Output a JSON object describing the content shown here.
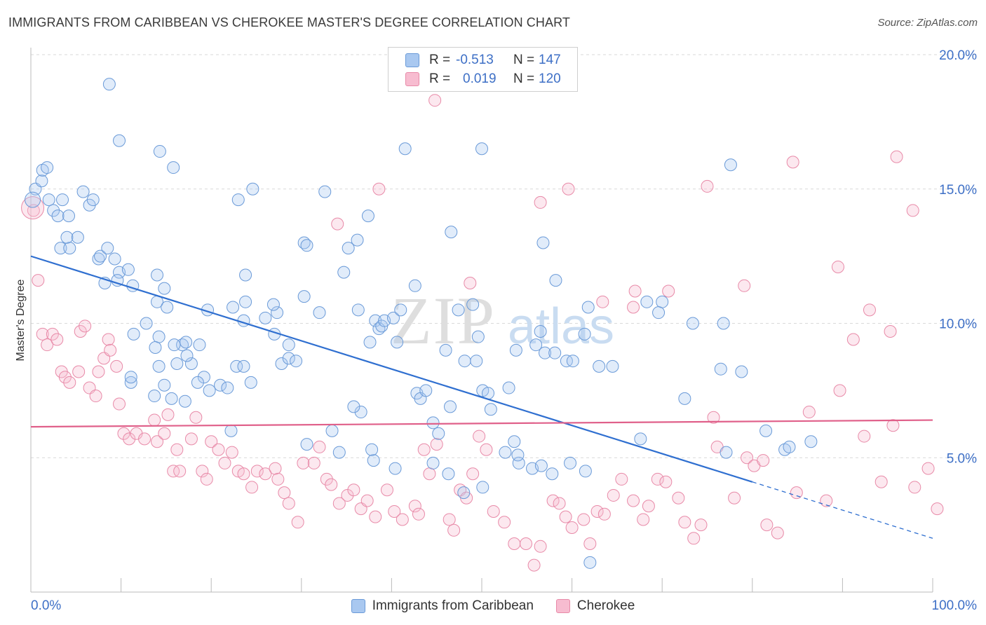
{
  "header": {
    "title": "IMMIGRANTS FROM CARIBBEAN VS CHEROKEE MASTER'S DEGREE CORRELATION CHART",
    "source": "Source: ZipAtlas.com"
  },
  "watermark": {
    "zip": "ZIP",
    "atlas": "atlas"
  },
  "legend": {
    "rows": [
      {
        "r_label": "R =",
        "r_value": "-0.513",
        "n_label": "N =",
        "n_value": "147",
        "color": "#a9c8f0",
        "border": "#6a9ad8"
      },
      {
        "r_label": "R =",
        "r_value": "0.019",
        "n_label": "N =",
        "n_value": "120",
        "color": "#f7bcd0",
        "border": "#e88aa8"
      }
    ]
  },
  "bottom_legend": [
    {
      "label": "Immigrants from Caribbean",
      "color": "#a9c8f0",
      "border": "#6a9ad8"
    },
    {
      "label": "Cherokee",
      "color": "#f7bcd0",
      "border": "#e88aa8"
    }
  ],
  "chart_data": {
    "type": "scatter",
    "title": "IMMIGRANTS FROM CARIBBEAN VS CHEROKEE MASTER'S DEGREE CORRELATION CHART",
    "xlabel": "",
    "ylabel": "Master's Degree",
    "xlim": [
      0,
      100
    ],
    "ylim": [
      0,
      20
    ],
    "x_tick_labels": [
      "0.0%",
      "100.0%"
    ],
    "y_ticks": [
      5,
      10,
      15,
      20
    ],
    "y_tick_labels": [
      "5.0%",
      "10.0%",
      "15.0%",
      "20.0%"
    ],
    "grid": true,
    "legend_position": "top-center",
    "colors": {
      "caribbean": "#6a9ad8",
      "caribbean_line": "#2f6fd0",
      "cherokee": "#e88aa8",
      "cherokee_line": "#e0608a",
      "axis_label": "#3d6fc6"
    },
    "series": [
      {
        "name": "Immigrants from Caribbean",
        "trend": {
          "x": [
            0,
            80
          ],
          "y": [
            12.5,
            4.1
          ],
          "dashed_extension_to": [
            100,
            2.0
          ]
        },
        "points": [
          [
            0.5,
            15.0
          ],
          [
            1.2,
            15.3
          ],
          [
            1.3,
            15.7
          ],
          [
            1.8,
            15.8
          ],
          [
            2.0,
            14.6
          ],
          [
            2.5,
            14.2
          ],
          [
            3.0,
            14.0
          ],
          [
            3.5,
            14.6
          ],
          [
            4.2,
            14.0
          ],
          [
            3.3,
            12.8
          ],
          [
            4.3,
            12.8
          ],
          [
            4.0,
            13.2
          ],
          [
            5.2,
            13.2
          ],
          [
            5.8,
            14.9
          ],
          [
            6.5,
            14.4
          ],
          [
            6.9,
            14.6
          ],
          [
            7.5,
            12.4
          ],
          [
            7.7,
            12.5
          ],
          [
            8.5,
            12.8
          ],
          [
            9.3,
            12.4
          ],
          [
            8.2,
            11.5
          ],
          [
            9.8,
            11.9
          ],
          [
            9.6,
            11.6
          ],
          [
            10.8,
            12.0
          ],
          [
            11.3,
            11.4
          ],
          [
            14.0,
            11.8
          ],
          [
            14.8,
            11.3
          ],
          [
            14.0,
            10.8
          ],
          [
            15.1,
            10.6
          ],
          [
            11.4,
            9.6
          ],
          [
            12.8,
            10.0
          ],
          [
            14.2,
            9.5
          ],
          [
            16.8,
            9.2
          ],
          [
            17.2,
            9.3
          ],
          [
            17.8,
            8.5
          ],
          [
            18.7,
            9.2
          ],
          [
            15.9,
            9.2
          ],
          [
            14.2,
            8.4
          ],
          [
            13.8,
            9.1
          ],
          [
            17.3,
            8.8
          ],
          [
            17.1,
            7.1
          ],
          [
            19.2,
            8.0
          ],
          [
            18.5,
            7.8
          ],
          [
            19.8,
            7.5
          ],
          [
            21.0,
            7.7
          ],
          [
            21.8,
            7.6
          ],
          [
            22.2,
            6.0
          ],
          [
            22.8,
            8.4
          ],
          [
            23.6,
            8.4
          ],
          [
            24.4,
            7.8
          ],
          [
            22.4,
            10.6
          ],
          [
            23.6,
            10.1
          ],
          [
            23.8,
            11.8
          ],
          [
            26.0,
            10.2
          ],
          [
            27.0,
            9.6
          ],
          [
            27.3,
            10.4
          ],
          [
            27.8,
            8.5
          ],
          [
            28.6,
            9.2
          ],
          [
            28.6,
            8.7
          ],
          [
            29.4,
            8.6
          ],
          [
            30.3,
            13.0
          ],
          [
            30.6,
            12.9
          ],
          [
            32.0,
            10.4
          ],
          [
            34.7,
            11.9
          ],
          [
            35.2,
            12.8
          ],
          [
            36.2,
            13.1
          ],
          [
            36.3,
            10.5
          ],
          [
            38.2,
            10.1
          ],
          [
            38.6,
            9.8
          ],
          [
            38.9,
            9.9
          ],
          [
            39.2,
            10.1
          ],
          [
            40.2,
            10.2
          ],
          [
            41.0,
            10.5
          ],
          [
            42.8,
            7.4
          ],
          [
            43.2,
            7.2
          ],
          [
            43.8,
            7.5
          ],
          [
            44.6,
            6.3
          ],
          [
            45.2,
            5.9
          ],
          [
            46.3,
            4.4
          ],
          [
            47.4,
            10.5
          ],
          [
            49.0,
            10.7
          ],
          [
            49.6,
            9.5
          ],
          [
            48.1,
            8.6
          ],
          [
            50.1,
            7.5
          ],
          [
            50.7,
            7.4
          ],
          [
            51.0,
            6.8
          ],
          [
            53.0,
            7.6
          ],
          [
            53.8,
            9.0
          ],
          [
            56.0,
            9.2
          ],
          [
            56.5,
            9.7
          ],
          [
            57.0,
            8.9
          ],
          [
            58.1,
            8.9
          ],
          [
            59.4,
            8.6
          ],
          [
            60.1,
            8.6
          ],
          [
            54.1,
            4.8
          ],
          [
            55.6,
            4.6
          ],
          [
            56.6,
            4.7
          ],
          [
            57.8,
            4.4
          ],
          [
            59.8,
            4.8
          ],
          [
            52.6,
            5.2
          ],
          [
            54.0,
            5.1
          ],
          [
            61.5,
            4.5
          ],
          [
            62.0,
            1.1
          ],
          [
            63.0,
            8.4
          ],
          [
            64.5,
            8.4
          ],
          [
            67.6,
            5.7
          ],
          [
            68.3,
            10.8
          ],
          [
            70.0,
            10.8
          ],
          [
            69.6,
            10.4
          ],
          [
            72.5,
            7.2
          ],
          [
            76.5,
            8.3
          ],
          [
            77.1,
            5.2
          ],
          [
            78.8,
            8.2
          ],
          [
            81.5,
            6.0
          ],
          [
            83.6,
            5.3
          ],
          [
            84.1,
            5.4
          ],
          [
            86.5,
            5.6
          ],
          [
            8.7,
            18.9
          ],
          [
            9.8,
            16.8
          ],
          [
            14.3,
            16.4
          ],
          [
            15.8,
            15.8
          ],
          [
            24.6,
            15.0
          ],
          [
            23.0,
            14.6
          ],
          [
            32.6,
            14.9
          ],
          [
            37.4,
            14.0
          ],
          [
            41.5,
            16.5
          ],
          [
            50.0,
            16.5
          ],
          [
            56.8,
            13.0
          ],
          [
            46.6,
            13.4
          ],
          [
            58.2,
            11.6
          ],
          [
            61.8,
            10.6
          ],
          [
            42.6,
            11.4
          ],
          [
            30.3,
            11.0
          ],
          [
            26.9,
            10.7
          ],
          [
            23.8,
            10.8
          ],
          [
            19.6,
            10.5
          ],
          [
            37.6,
            9.3
          ],
          [
            40.6,
            9.3
          ],
          [
            46.0,
            9.0
          ],
          [
            49.4,
            8.6
          ],
          [
            61.4,
            9.6
          ],
          [
            34.2,
            5.2
          ],
          [
            38.0,
            4.9
          ],
          [
            44.6,
            4.8
          ],
          [
            50.1,
            3.9
          ],
          [
            48.0,
            3.7
          ],
          [
            40.4,
            4.6
          ],
          [
            46.5,
            6.9
          ],
          [
            53.6,
            5.6
          ],
          [
            36.6,
            6.7
          ],
          [
            35.8,
            6.9
          ],
          [
            33.4,
            6.0
          ],
          [
            30.6,
            5.5
          ],
          [
            37.8,
            5.3
          ],
          [
            73.4,
            10.0
          ],
          [
            76.8,
            10.0
          ],
          [
            77.6,
            15.9
          ],
          [
            11.1,
            7.8
          ],
          [
            11.1,
            8.0
          ],
          [
            16.2,
            8.5
          ],
          [
            14.8,
            7.7
          ],
          [
            13.7,
            7.3
          ],
          [
            15.6,
            7.2
          ]
        ]
      },
      {
        "name": "Cherokee",
        "trend": {
          "x": [
            0,
            100
          ],
          "y": [
            6.15,
            6.4
          ]
        },
        "points": [
          [
            0.3,
            14.2
          ],
          [
            0.8,
            11.6
          ],
          [
            1.3,
            9.6
          ],
          [
            1.8,
            9.2
          ],
          [
            2.4,
            9.6
          ],
          [
            2.9,
            9.4
          ],
          [
            3.4,
            8.2
          ],
          [
            3.8,
            8.0
          ],
          [
            4.3,
            7.8
          ],
          [
            5.5,
            9.7
          ],
          [
            5.3,
            8.2
          ],
          [
            6.0,
            9.9
          ],
          [
            6.5,
            7.6
          ],
          [
            7.2,
            7.3
          ],
          [
            7.5,
            8.2
          ],
          [
            8.1,
            8.7
          ],
          [
            8.6,
            9.4
          ],
          [
            8.8,
            9.0
          ],
          [
            9.5,
            8.4
          ],
          [
            9.8,
            7.0
          ],
          [
            10.3,
            5.9
          ],
          [
            10.9,
            5.7
          ],
          [
            11.7,
            5.9
          ],
          [
            12.6,
            5.7
          ],
          [
            13.7,
            6.4
          ],
          [
            14.0,
            5.6
          ],
          [
            14.8,
            5.9
          ],
          [
            15.2,
            6.6
          ],
          [
            15.8,
            4.5
          ],
          [
            16.2,
            5.3
          ],
          [
            16.5,
            4.5
          ],
          [
            17.8,
            5.7
          ],
          [
            18.3,
            6.5
          ],
          [
            19.0,
            4.5
          ],
          [
            19.5,
            4.2
          ],
          [
            20.0,
            5.6
          ],
          [
            20.8,
            5.3
          ],
          [
            21.5,
            4.8
          ],
          [
            22.3,
            5.2
          ],
          [
            23.0,
            4.5
          ],
          [
            23.6,
            4.4
          ],
          [
            24.5,
            3.9
          ],
          [
            25.1,
            4.5
          ],
          [
            26.0,
            4.4
          ],
          [
            27.1,
            4.6
          ],
          [
            27.4,
            4.2
          ],
          [
            28.1,
            3.7
          ],
          [
            28.6,
            3.3
          ],
          [
            29.6,
            2.6
          ],
          [
            30.2,
            4.8
          ],
          [
            31.4,
            4.8
          ],
          [
            32.0,
            5.4
          ],
          [
            32.8,
            4.2
          ],
          [
            33.3,
            4.0
          ],
          [
            34.2,
            3.3
          ],
          [
            35.1,
            3.6
          ],
          [
            35.8,
            3.8
          ],
          [
            36.6,
            3.1
          ],
          [
            37.3,
            3.4
          ],
          [
            38.2,
            2.8
          ],
          [
            39.5,
            3.8
          ],
          [
            40.3,
            3.0
          ],
          [
            41.2,
            2.7
          ],
          [
            42.6,
            3.2
          ],
          [
            43.0,
            2.9
          ],
          [
            43.6,
            5.3
          ],
          [
            44.2,
            4.4
          ],
          [
            45.0,
            5.5
          ],
          [
            46.4,
            2.7
          ],
          [
            46.9,
            2.3
          ],
          [
            47.6,
            3.8
          ],
          [
            48.3,
            3.5
          ],
          [
            49.0,
            4.4
          ],
          [
            49.7,
            5.8
          ],
          [
            50.5,
            5.3
          ],
          [
            51.3,
            3.0
          ],
          [
            52.5,
            2.6
          ],
          [
            53.6,
            1.8
          ],
          [
            54.9,
            1.8
          ],
          [
            55.8,
            1.0
          ],
          [
            56.5,
            1.7
          ],
          [
            57.9,
            3.4
          ],
          [
            58.6,
            3.3
          ],
          [
            59.3,
            2.8
          ],
          [
            60.0,
            2.4
          ],
          [
            61.3,
            2.7
          ],
          [
            62.0,
            1.8
          ],
          [
            62.8,
            3.0
          ],
          [
            63.6,
            2.9
          ],
          [
            64.6,
            3.6
          ],
          [
            65.5,
            4.2
          ],
          [
            66.8,
            3.4
          ],
          [
            67.9,
            2.7
          ],
          [
            68.5,
            3.2
          ],
          [
            69.5,
            4.2
          ],
          [
            70.4,
            4.1
          ],
          [
            71.8,
            3.5
          ],
          [
            72.5,
            2.6
          ],
          [
            73.5,
            2.0
          ],
          [
            74.3,
            2.5
          ],
          [
            76.1,
            5.4
          ],
          [
            78.0,
            3.5
          ],
          [
            79.4,
            5.0
          ],
          [
            80.2,
            4.7
          ],
          [
            81.6,
            2.5
          ],
          [
            82.8,
            2.2
          ],
          [
            84.9,
            3.7
          ],
          [
            86.3,
            6.7
          ],
          [
            88.2,
            3.4
          ],
          [
            89.7,
            7.5
          ],
          [
            91.2,
            9.4
          ],
          [
            92.4,
            5.8
          ],
          [
            94.3,
            4.1
          ],
          [
            95.6,
            6.2
          ],
          [
            98.0,
            3.9
          ],
          [
            99.5,
            4.6
          ],
          [
            100.5,
            3.1
          ],
          [
            34.0,
            13.7
          ],
          [
            38.6,
            15.0
          ],
          [
            44.8,
            18.3
          ],
          [
            48.7,
            11.5
          ],
          [
            56.5,
            14.5
          ],
          [
            59.6,
            15.0
          ],
          [
            63.4,
            10.8
          ],
          [
            67.0,
            11.2
          ],
          [
            70.7,
            11.2
          ],
          [
            75.0,
            15.1
          ],
          [
            79.1,
            11.4
          ],
          [
            84.5,
            16.0
          ],
          [
            89.5,
            12.1
          ],
          [
            93.0,
            10.5
          ],
          [
            95.3,
            9.7
          ],
          [
            96.0,
            16.2
          ],
          [
            97.8,
            14.2
          ],
          [
            66.8,
            10.6
          ],
          [
            75.7,
            6.5
          ],
          [
            81.2,
            4.9
          ]
        ]
      }
    ]
  }
}
